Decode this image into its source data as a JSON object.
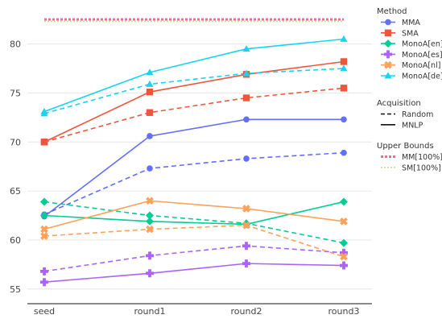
{
  "chart_data": {
    "type": "line",
    "title": "",
    "xlabel": "",
    "ylabel": "",
    "categories": [
      "seed",
      "round1",
      "round2",
      "round3"
    ],
    "ylim": [
      53.5,
      83.5
    ],
    "yticks": [
      55,
      60,
      65,
      70,
      75,
      80
    ],
    "grid": "horizontal",
    "legend_position": "right",
    "legend_groups": [
      {
        "title": "Method",
        "entries": [
          "MMA",
          "SMA",
          "MonoA[en]",
          "MonoA[es]",
          "MonoA[nl]",
          "MonoA[de]"
        ]
      },
      {
        "title": "Acquisition",
        "entries": [
          "Random",
          "MNLP"
        ]
      },
      {
        "title": "Upper Bounds",
        "entries": [
          "MM[100%]",
          "SM[100%]"
        ]
      }
    ],
    "colors": {
      "MMA": "#636efa",
      "SMA": "#ef553b",
      "MonoA[en]": "#00cc96",
      "MonoA[es]": "#ab63fa",
      "MonoA[nl]": "#ffa15a",
      "MonoA[de]": "#19d3f3",
      "MM[100%]": "#ff6692",
      "SM[100%]": "#b6e880"
    },
    "series": [
      {
        "name": "MMA",
        "acquisition": "Random",
        "marker": "circle",
        "values": [
          62.6,
          67.3,
          68.3,
          68.9
        ]
      },
      {
        "name": "MMA",
        "acquisition": "MNLP",
        "marker": "circle",
        "values": [
          62.4,
          70.6,
          72.3,
          72.3
        ]
      },
      {
        "name": "SMA",
        "acquisition": "Random",
        "marker": "square",
        "values": [
          70.0,
          73.0,
          74.5,
          75.5
        ]
      },
      {
        "name": "SMA",
        "acquisition": "MNLP",
        "marker": "square",
        "values": [
          70.0,
          75.1,
          76.9,
          78.2
        ]
      },
      {
        "name": "MonoA[en]",
        "acquisition": "Random",
        "marker": "diamond",
        "values": [
          63.9,
          62.5,
          61.7,
          59.7
        ]
      },
      {
        "name": "MonoA[en]",
        "acquisition": "MNLP",
        "marker": "diamond",
        "values": [
          62.5,
          61.9,
          61.6,
          63.9
        ]
      },
      {
        "name": "MonoA[es]",
        "acquisition": "Random",
        "marker": "cross",
        "values": [
          56.8,
          58.4,
          59.4,
          58.7
        ]
      },
      {
        "name": "MonoA[es]",
        "acquisition": "MNLP",
        "marker": "cross",
        "values": [
          55.7,
          56.6,
          57.6,
          57.4
        ]
      },
      {
        "name": "MonoA[nl]",
        "acquisition": "Random",
        "marker": "x",
        "values": [
          60.4,
          61.1,
          61.5,
          58.3
        ]
      },
      {
        "name": "MonoA[nl]",
        "acquisition": "MNLP",
        "marker": "x",
        "values": [
          61.1,
          64.0,
          63.2,
          61.9
        ]
      },
      {
        "name": "MonoA[de]",
        "acquisition": "Random",
        "marker": "triangle-up",
        "values": [
          72.9,
          75.9,
          77.0,
          77.5
        ]
      },
      {
        "name": "MonoA[de]",
        "acquisition": "MNLP",
        "marker": "triangle-up",
        "values": [
          73.1,
          77.1,
          79.5,
          80.5
        ]
      }
    ],
    "upper_bounds": [
      {
        "name": "MM[100%]",
        "value": 82.5,
        "style": "dotted"
      },
      {
        "name": "SM[100%]",
        "value": 82.3,
        "style": "dotted"
      }
    ]
  }
}
